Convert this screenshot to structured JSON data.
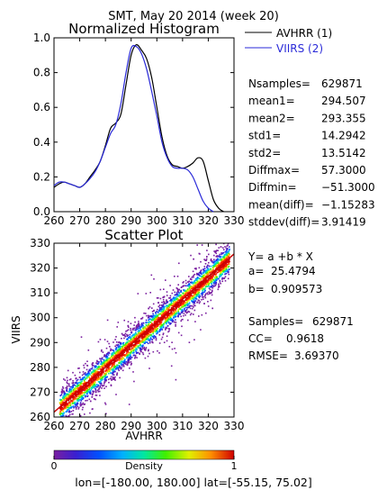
{
  "page": {
    "title": "SMT,  May 20 2014 (week 20)",
    "footer": "lon=[-180.00, 180.00] lat=[-55.15, 75.02]"
  },
  "histogram_stats": [
    {
      "label": "Nsamples=",
      "value": "629871"
    },
    {
      "label": "mean1=",
      "value": "294.507"
    },
    {
      "label": "mean2=",
      "value": "293.355"
    },
    {
      "label": "std1=",
      "value": "14.2942"
    },
    {
      "label": "std2=",
      "value": "13.5142"
    },
    {
      "label": "Diffmax=",
      "value": "57.3000"
    },
    {
      "label": "Diffmin=",
      "value": "−51.3000"
    },
    {
      "label": "mean(diff)=",
      "value": "−1.15283"
    },
    {
      "label": "stddev(diff)=",
      "value": "3.91419"
    }
  ],
  "scatter_stats": {
    "fit_equation": "Y= a +b * X",
    "a": {
      "label": "a=",
      "value": "25.4794"
    },
    "b": {
      "label": "b=",
      "value": "0.909573"
    },
    "samples": {
      "label": "Samples=",
      "value": "629871"
    },
    "cc": {
      "label": "CC=",
      "value": "0.9618"
    },
    "rmse": {
      "label": "RMSE=",
      "value": "3.69370"
    }
  },
  "colors": {
    "avhrr": "#000000",
    "viirs": "#2a2ad8",
    "fit_line": "#cc0000",
    "density_ramp": [
      "#7a1fa0",
      "#3a1fd0",
      "#0050ff",
      "#00b0ff",
      "#00e8a0",
      "#40f000",
      "#e0f000",
      "#ff9000",
      "#ff2000",
      "#d00000"
    ]
  },
  "chart_data": [
    {
      "type": "line",
      "title": "Normalized Histogram",
      "xlim": [
        260,
        330
      ],
      "ylim": [
        0.0,
        1.0
      ],
      "x_ticks": [
        "260",
        "270",
        "280",
        "290",
        "300",
        "310",
        "320",
        "330"
      ],
      "y_ticks": [
        "0.0",
        "0.2",
        "0.4",
        "0.6",
        "0.8",
        "1.0"
      ],
      "legend": "outside right",
      "series": [
        {
          "name": "AVHRR (1)",
          "color": "#000000",
          "points": [
            [
              260,
              0.14
            ],
            [
              262,
              0.16
            ],
            [
              264,
              0.17
            ],
            [
              266,
              0.16
            ],
            [
              268,
              0.15
            ],
            [
              270,
              0.14
            ],
            [
              272,
              0.16
            ],
            [
              274,
              0.2
            ],
            [
              276,
              0.24
            ],
            [
              278,
              0.29
            ],
            [
              280,
              0.38
            ],
            [
              282,
              0.48
            ],
            [
              284,
              0.51
            ],
            [
              286,
              0.56
            ],
            [
              288,
              0.73
            ],
            [
              290,
              0.9
            ],
            [
              292,
              0.96
            ],
            [
              294,
              0.93
            ],
            [
              296,
              0.88
            ],
            [
              298,
              0.77
            ],
            [
              300,
              0.6
            ],
            [
              302,
              0.43
            ],
            [
              304,
              0.32
            ],
            [
              306,
              0.27
            ],
            [
              308,
              0.26
            ],
            [
              310,
              0.25
            ],
            [
              312,
              0.26
            ],
            [
              314,
              0.28
            ],
            [
              316,
              0.31
            ],
            [
              318,
              0.29
            ],
            [
              320,
              0.18
            ],
            [
              322,
              0.07
            ],
            [
              324,
              0.02
            ],
            [
              326,
              0.0
            ]
          ]
        },
        {
          "name": "VIIRS (2)",
          "color": "#2a2ad8",
          "points": [
            [
              260,
              0.15
            ],
            [
              262,
              0.17
            ],
            [
              264,
              0.17
            ],
            [
              266,
              0.16
            ],
            [
              268,
              0.15
            ],
            [
              270,
              0.14
            ],
            [
              272,
              0.16
            ],
            [
              274,
              0.19
            ],
            [
              276,
              0.23
            ],
            [
              278,
              0.29
            ],
            [
              280,
              0.37
            ],
            [
              282,
              0.45
            ],
            [
              284,
              0.5
            ],
            [
              286,
              0.62
            ],
            [
              288,
              0.8
            ],
            [
              290,
              0.94
            ],
            [
              292,
              0.95
            ],
            [
              294,
              0.91
            ],
            [
              296,
              0.82
            ],
            [
              298,
              0.69
            ],
            [
              300,
              0.55
            ],
            [
              302,
              0.4
            ],
            [
              304,
              0.31
            ],
            [
              306,
              0.26
            ],
            [
              308,
              0.25
            ],
            [
              310,
              0.25
            ],
            [
              312,
              0.24
            ],
            [
              314,
              0.2
            ],
            [
              316,
              0.13
            ],
            [
              318,
              0.06
            ],
            [
              320,
              0.02
            ],
            [
              322,
              0.0
            ]
          ]
        }
      ]
    },
    {
      "type": "heatmap",
      "title": "Scatter Plot",
      "xlabel": "AVHRR",
      "ylabel": "VIIRS",
      "xlim": [
        260,
        330
      ],
      "ylim": [
        260,
        330
      ],
      "x_ticks": [
        "260",
        "270",
        "280",
        "290",
        "300",
        "310",
        "320",
        "330"
      ],
      "y_ticks": [
        "260",
        "270",
        "280",
        "290",
        "300",
        "310",
        "320",
        "330"
      ],
      "fit": {
        "a": 25.4794,
        "b": 0.909573
      },
      "colorbar": {
        "label": "Density",
        "min_label": "0",
        "max_label": "1",
        "range": [
          0,
          1
        ]
      }
    }
  ]
}
